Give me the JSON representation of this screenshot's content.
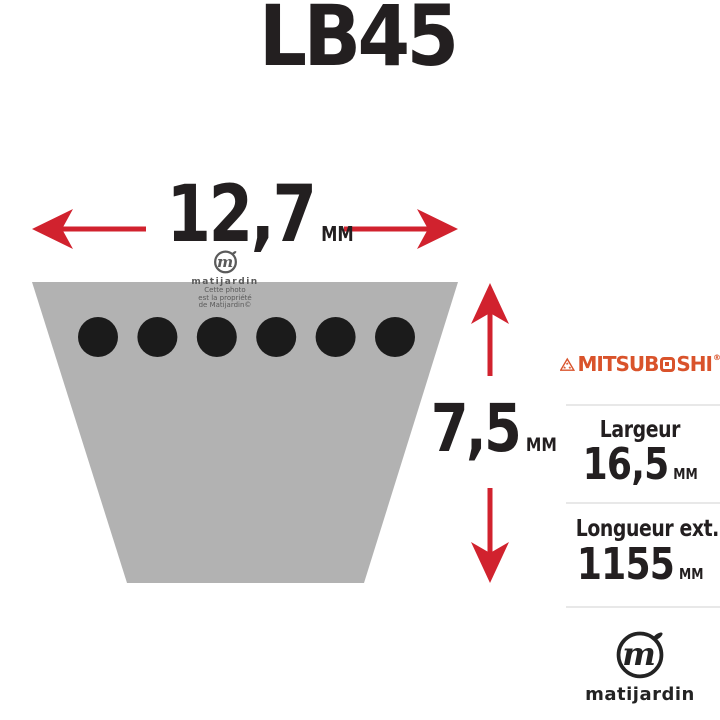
{
  "title": "LB45",
  "colors": {
    "arrow_red": "#d1222e",
    "belt_gray": "#b2b2b2",
    "dot_black": "#1b1b1b",
    "ink": "#231f20",
    "brand_orange": "#d9532b",
    "divider": "#e8e8e8",
    "watermark_gray": "#5a5a5a",
    "logo_black": "#232323"
  },
  "belt": {
    "dot_count": 6
  },
  "dimensions": {
    "width": {
      "value": "12,7",
      "unit": "mm"
    },
    "height": {
      "value": "7,5",
      "unit": "mm"
    }
  },
  "watermark": {
    "brand": "matijardin",
    "monogram": "m",
    "lines": [
      "Cette photo",
      "est la propriété",
      "de Matijardin©"
    ]
  },
  "specs": {
    "brand": {
      "part1": "MITSUB",
      "part2": "SHI",
      "registered": "®"
    },
    "rows": [
      {
        "label": "Largeur",
        "value": "16,5",
        "unit": "mm"
      },
      {
        "label": "Longueur ext.",
        "value": "1155",
        "unit": "mm"
      }
    ]
  },
  "footer_logo": {
    "brand": "matijardin",
    "monogram": "m"
  }
}
